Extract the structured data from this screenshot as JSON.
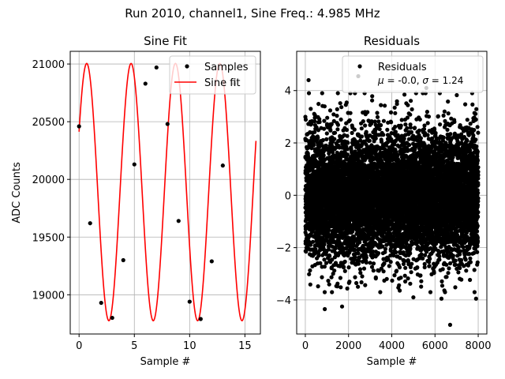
{
  "figure": {
    "suptitle": "Run 2010, channel1, Sine Freq.: 4.985 MHz"
  },
  "chart_data": [
    {
      "type": "line",
      "title": "Sine Fit",
      "xlabel": "Sample #",
      "ylabel": "ADC Counts",
      "xlim": [
        -0.8,
        16.4
      ],
      "ylim": [
        18660,
        21110
      ],
      "xticks": [
        0,
        5,
        10,
        15
      ],
      "yticks": [
        19000,
        19500,
        20000,
        20500,
        21000
      ],
      "grid": true,
      "legend_position": "top-right",
      "legend": [
        "Samples",
        "Sine fit"
      ],
      "samples": {
        "name": "Samples",
        "color": "#000000",
        "x": [
          0,
          1,
          2,
          3,
          4,
          5,
          6,
          7,
          8,
          9,
          10,
          11,
          12,
          13,
          14
        ],
        "y": [
          20460,
          19620,
          18930,
          18800,
          19300,
          20130,
          20830,
          20970,
          20480,
          19640,
          18940,
          18790,
          19290,
          20120,
          20830
        ]
      },
      "fit": {
        "name": "Sine fit",
        "color": "#ff0000",
        "offset": 19890,
        "amplitude": 1115,
        "period": 4.0127,
        "phase_deg": 28,
        "x_range": [
          0,
          16
        ]
      }
    },
    {
      "type": "scatter",
      "title": "Residuals",
      "xlabel": "Sample #",
      "ylabel": "",
      "xlim": [
        -400,
        8400
      ],
      "ylim": [
        -5.3,
        5.5
      ],
      "xticks": [
        0,
        2000,
        4000,
        6000,
        8000
      ],
      "yticks": [
        -4,
        -2,
        0,
        2,
        4
      ],
      "grid": true,
      "legend_position": "top-right",
      "legend": [
        "Residuals",
        "$\\mu$ = -0.0, $\\sigma$ = 1.24"
      ],
      "series": {
        "name": "Residuals",
        "color": "#000000",
        "n_points": 8000,
        "mu": -0.0,
        "sigma": 1.24,
        "outliers": [
          {
            "x": 150,
            "y": 4.4
          },
          {
            "x": 2450,
            "y": 4.55
          },
          {
            "x": 5600,
            "y": 4.1
          },
          {
            "x": 6700,
            "y": -4.95
          },
          {
            "x": 900,
            "y": -4.35
          },
          {
            "x": 1700,
            "y": -4.25
          },
          {
            "x": 7900,
            "y": -3.95
          },
          {
            "x": 6300,
            "y": -3.95
          },
          {
            "x": 5000,
            "y": -3.9
          }
        ]
      }
    }
  ]
}
